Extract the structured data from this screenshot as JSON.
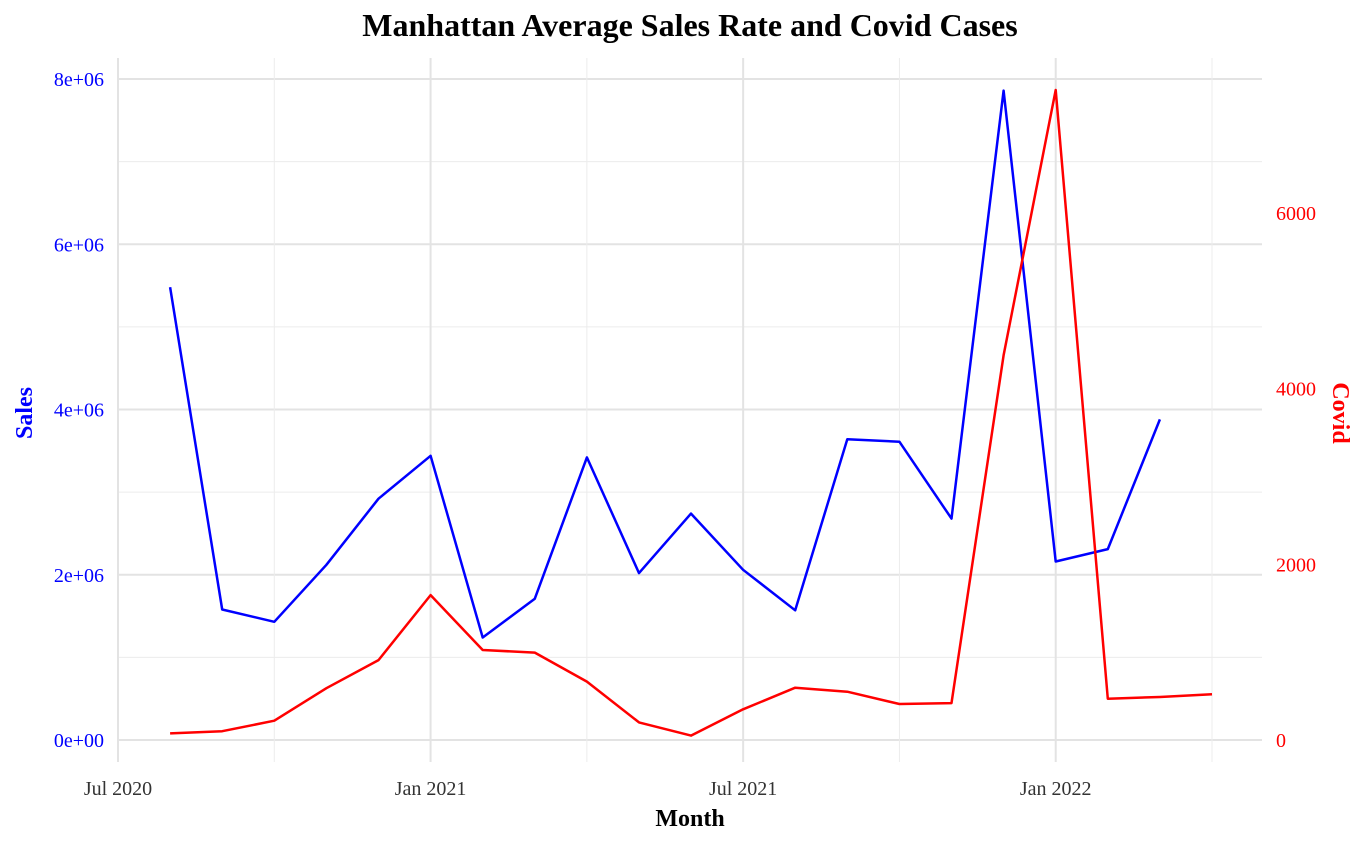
{
  "chart_data": {
    "type": "line",
    "title": "Manhattan Average Sales Rate and Covid Cases",
    "xlabel": "Month",
    "ylabel_left": "Sales",
    "ylabel_right": "Covid",
    "x_tick_labels": [
      "Jul 2020",
      "Jan 2021",
      "Jul 2021",
      "Jan 2022"
    ],
    "y_left_tick_labels": [
      "0e+00",
      "2e+06",
      "4e+06",
      "6e+06",
      "8e+06"
    ],
    "y_right_tick_labels": [
      "0",
      "2000",
      "4000",
      "6000"
    ],
    "y_left_range": [
      0,
      8000000
    ],
    "y_right_range": [
      0,
      7500
    ],
    "grid": true,
    "x": [
      "2020-08",
      "2020-09",
      "2020-10",
      "2020-11",
      "2020-12",
      "2021-01",
      "2021-02",
      "2021-03",
      "2021-04",
      "2021-05",
      "2021-06",
      "2021-07",
      "2021-08",
      "2021-09",
      "2021-10",
      "2021-11",
      "2021-12",
      "2022-01",
      "2022-02",
      "2022-03",
      "2022-04"
    ],
    "series": [
      {
        "axis": "left",
        "color": "#0000FF",
        "values": [
          5480000,
          1580000,
          1430000,
          2120000,
          2920000,
          3440000,
          1240000,
          1710000,
          3420000,
          2020000,
          2740000,
          2060000,
          1570000,
          3640000,
          3610000,
          2680000,
          7860000,
          2160000,
          2310000,
          3880000,
          null
        ]
      },
      {
        "axis": "right",
        "color": "#FF0000",
        "values": [
          75,
          100,
          220,
          590,
          910,
          1650,
          1025,
          995,
          665,
          200,
          50,
          350,
          595,
          550,
          410,
          420,
          4380,
          7400,
          470,
          490,
          520
        ]
      }
    ]
  }
}
